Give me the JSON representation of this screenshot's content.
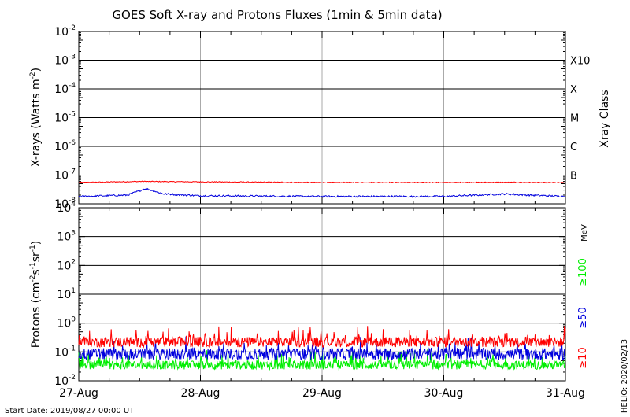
{
  "title": "GOES Soft X-ray and Protons Fluxes   (1min & 5min data)",
  "footer": {
    "start_date": "Start Date: 2019/08/27 00:00 UT",
    "helio": "HELIO: 2020/02/13"
  },
  "colors": {
    "red": "#ff0000",
    "blue": "#0000dd",
    "green": "#00ee00",
    "grid_major": "#000000",
    "grid_day": "#aaaaaa"
  },
  "chart_data": [
    {
      "type": "line",
      "panel": "xrays",
      "ylabel": "X-rays (Watts m-2)",
      "ylabel_main": "X-rays (Watts m",
      "ylabel_sup": "-2",
      "ylabel_close": ")",
      "yscale": "log",
      "ylim": [
        1e-08,
        0.01
      ],
      "y_ticks": [
        {
          "base": "10",
          "exp": "-8"
        },
        {
          "base": "10",
          "exp": "-7"
        },
        {
          "base": "10",
          "exp": "-6"
        },
        {
          "base": "10",
          "exp": "-5"
        },
        {
          "base": "10",
          "exp": "-4"
        },
        {
          "base": "10",
          "exp": "-3"
        },
        {
          "base": "10",
          "exp": "-2"
        }
      ],
      "right_axis_label": "Xray Class",
      "classes": [
        {
          "label": "B",
          "y": 1e-07
        },
        {
          "label": "C",
          "y": 1e-06
        },
        {
          "label": "M",
          "y": 1e-05
        },
        {
          "label": "X",
          "y": 0.0001
        },
        {
          "label": "X10",
          "y": 0.001
        }
      ],
      "x_day_range": [
        0,
        4
      ],
      "series": [
        {
          "color": "red",
          "x": [
            0,
            0.5,
            1,
            2,
            3,
            3.5,
            4
          ],
          "y": [
            5.5e-08,
            6e-08,
            5.8e-08,
            5.5e-08,
            5.5e-08,
            5.6e-08,
            5.4e-08
          ]
        },
        {
          "color": "blue",
          "x": [
            0,
            0.4,
            0.55,
            0.7,
            1,
            2,
            3,
            3.5,
            3.7,
            4
          ],
          "y": [
            1.8e-08,
            2e-08,
            3.4e-08,
            2.2e-08,
            1.9e-08,
            1.8e-08,
            1.8e-08,
            2.2e-08,
            2e-08,
            1.8e-08
          ]
        }
      ]
    },
    {
      "type": "line",
      "panel": "protons",
      "ylabel": "Protons (cm-2s-1sr-1)",
      "ylabel_parts": [
        {
          "t": "Protons (cm"
        },
        {
          "t": "-2",
          "sup": true
        },
        {
          "t": "s"
        },
        {
          "t": "-1",
          "sup": true
        },
        {
          "t": "sr"
        },
        {
          "t": "-1",
          "sup": true
        },
        {
          "t": ")"
        }
      ],
      "yscale": "log",
      "ylim": [
        0.01,
        10000
      ],
      "y_ticks": [
        {
          "base": "10",
          "exp": "-2"
        },
        {
          "base": "10",
          "exp": "-1"
        },
        {
          "base": "10",
          "exp": "0"
        },
        {
          "base": "10",
          "exp": "1"
        },
        {
          "base": "10",
          "exp": "2"
        },
        {
          "base": "10",
          "exp": "3"
        },
        {
          "base": "10",
          "exp": "4"
        }
      ],
      "threshold_line": 10,
      "energy_unit": "MeV",
      "x_day_range": [
        0,
        4
      ],
      "x_ticks": [
        "27-Aug",
        "28-Aug",
        "29-Aug",
        "30-Aug",
        "31-Aug"
      ],
      "series": [
        {
          "label": "≥10",
          "color": "red",
          "base": 0.22,
          "spread": 0.35
        },
        {
          "label": "≥50",
          "color": "blue",
          "base": 0.085,
          "spread": 0.4
        },
        {
          "label": "≥100",
          "color": "green",
          "base": 0.035,
          "spread": 0.3
        }
      ]
    }
  ]
}
